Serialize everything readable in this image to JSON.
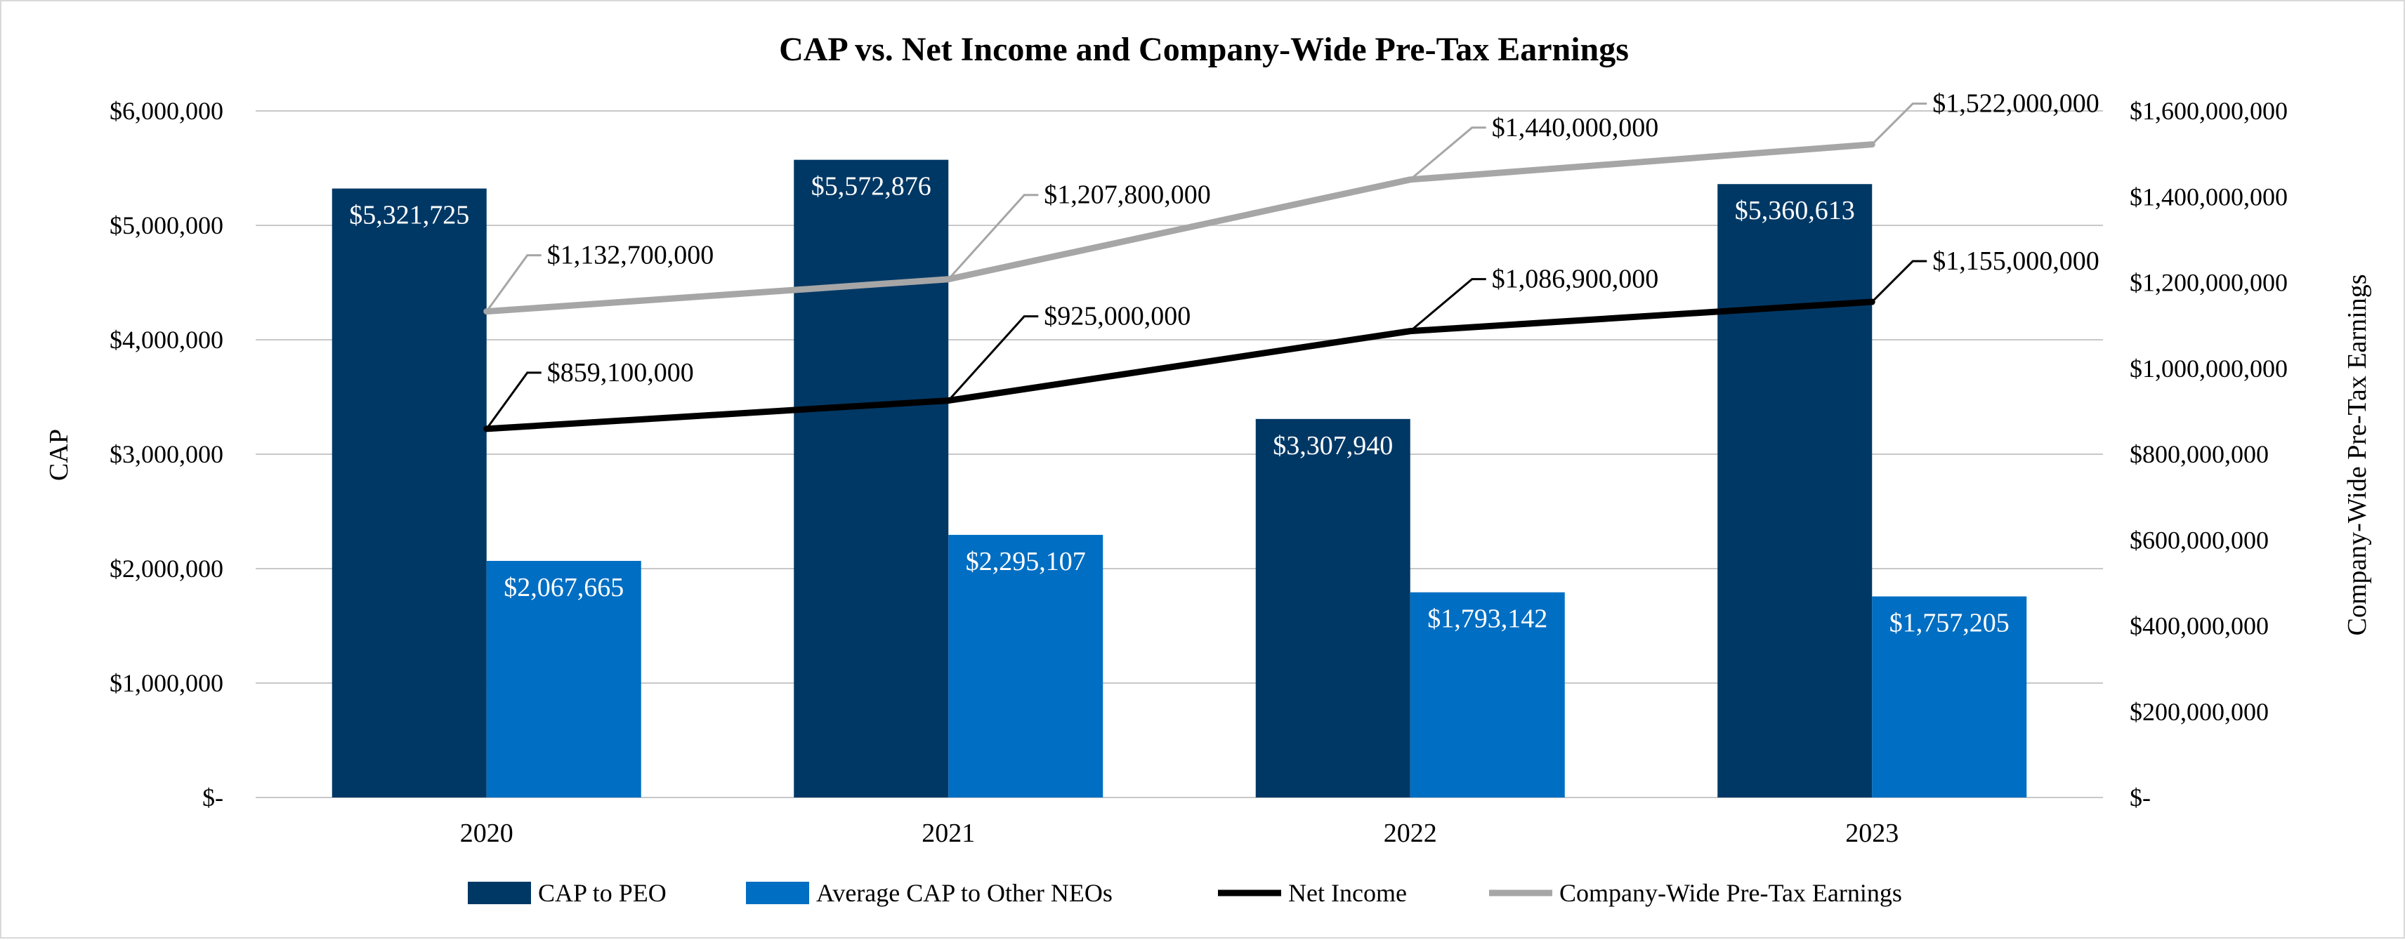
{
  "chart_data": {
    "type": "bar",
    "title": "CAP vs. Net Income and Company-Wide Pre-Tax Earnings",
    "categories": [
      "2020",
      "2021",
      "2022",
      "2023"
    ],
    "ylabel": "CAP",
    "y2label": "Company-Wide Pre-Tax Earnings",
    "ylim": [
      0,
      6000000
    ],
    "y2lim": [
      0,
      1600000000
    ],
    "grid": true,
    "legend_position": "bottom",
    "yticks": [
      {
        "value": 0,
        "label": "$-"
      },
      {
        "value": 1000000,
        "label": "$1,000,000"
      },
      {
        "value": 2000000,
        "label": "$2,000,000"
      },
      {
        "value": 3000000,
        "label": "$3,000,000"
      },
      {
        "value": 4000000,
        "label": "$4,000,000"
      },
      {
        "value": 5000000,
        "label": "$5,000,000"
      },
      {
        "value": 6000000,
        "label": "$6,000,000"
      }
    ],
    "y2ticks": [
      {
        "value": 0,
        "label": "$-"
      },
      {
        "value": 200000000,
        "label": "$200,000,000"
      },
      {
        "value": 400000000,
        "label": "$400,000,000"
      },
      {
        "value": 600000000,
        "label": "$600,000,000"
      },
      {
        "value": 800000000,
        "label": "$800,000,000"
      },
      {
        "value": 1000000000,
        "label": "$1,000,000,000"
      },
      {
        "value": 1200000000,
        "label": "$1,200,000,000"
      },
      {
        "value": 1400000000,
        "label": "$1,400,000,000"
      },
      {
        "value": 1600000000,
        "label": "$1,600,000,000"
      }
    ],
    "series": [
      {
        "name": "CAP to PEO",
        "kind": "bar",
        "axis": "left",
        "color": "#003865",
        "values": [
          5321725,
          5572876,
          3307940,
          5360613
        ],
        "labels": [
          "$5,321,725",
          "$5,572,876",
          "$3,307,940",
          "$5,360,613"
        ]
      },
      {
        "name": "Average CAP to Other NEOs",
        "kind": "bar",
        "axis": "left",
        "color": "#006ec2",
        "values": [
          2067665,
          2295107,
          1793142,
          1757205
        ],
        "labels": [
          "$2,067,665",
          "$2,295,107",
          "$1,793,142",
          "$1,757,205"
        ]
      },
      {
        "name": "Net Income",
        "kind": "line",
        "axis": "right",
        "color": "#000000",
        "values": [
          859100000,
          925000000,
          1086900000,
          1155000000
        ],
        "labels": [
          "$859,100,000",
          "$925,000,000",
          "$1,086,900,000",
          "$1,155,000,000"
        ]
      },
      {
        "name": "Company-Wide Pre-Tax Earnings",
        "kind": "line",
        "axis": "right",
        "color": "#a6a6a6",
        "values": [
          1132700000,
          1207800000,
          1440000000,
          1522000000
        ],
        "labels": [
          "$1,132,700,000",
          "$1,207,800,000",
          "$1,440,000,000",
          "$1,522,000,000"
        ]
      }
    ],
    "colors": {
      "gridline": "#c8c8c8",
      "text": "#000000",
      "bar_label": "#ffffff"
    }
  }
}
